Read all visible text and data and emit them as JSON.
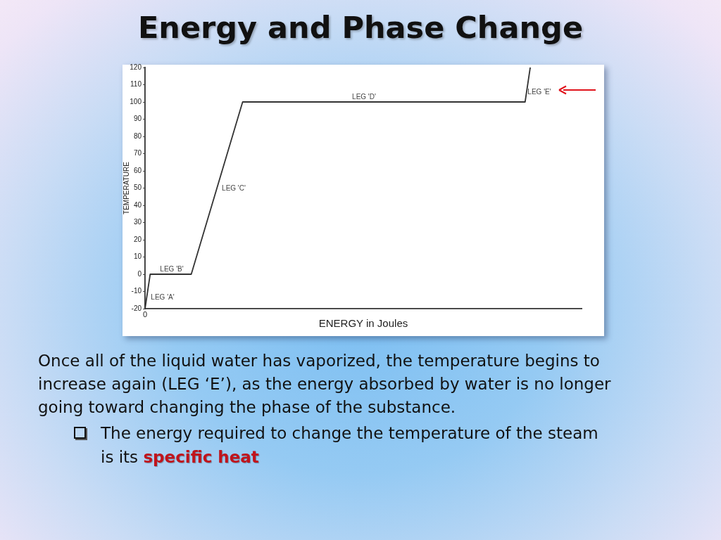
{
  "chart_data": {
    "type": "line",
    "title": "Energy and Phase Change",
    "xlabel": "ENERGY in Joules",
    "ylabel": "TEMPERATURE",
    "categories": [
      "0",
      null,
      null,
      null,
      null,
      null,
      null,
      null,
      null,
      null,
      null,
      null,
      null,
      null,
      null,
      null,
      null,
      null,
      null,
      null,
      null,
      null,
      null,
      null,
      null,
      null,
      null,
      null,
      null,
      null,
      null,
      null,
      null,
      null,
      null,
      null,
      null,
      null,
      null,
      null,
      null,
      null,
      null,
      null,
      null,
      null,
      null,
      null,
      null,
      null,
      null,
      null,
      null,
      null,
      null,
      null,
      null,
      null,
      null,
      null,
      null,
      null,
      null,
      null,
      null,
      null,
      null,
      null,
      null,
      null,
      null,
      null,
      null,
      null,
      null,
      null,
      null,
      null,
      null,
      null,
      null,
      null,
      null,
      null,
      null,
      null
    ],
    "series": [
      {
        "color": "#333333",
        "values": [
          -20,
          0,
          0,
          0,
          0,
          0,
          0,
          0,
          0,
          0,
          10,
          20,
          30,
          40,
          50,
          60,
          70,
          80,
          90,
          100,
          100,
          100,
          100,
          100,
          100,
          100,
          100,
          100,
          100,
          100,
          100,
          100,
          100,
          100,
          100,
          100,
          100,
          100,
          100,
          100,
          100,
          100,
          100,
          100,
          100,
          100,
          100,
          100,
          100,
          100,
          100,
          100,
          100,
          100,
          100,
          100,
          100,
          100,
          100,
          100,
          100,
          100,
          100,
          100,
          100,
          100,
          100,
          100,
          100,
          100,
          100,
          100,
          100,
          100,
          100,
          120,
          null,
          null,
          null,
          null,
          null,
          null,
          null,
          null,
          null,
          null
        ]
      }
    ],
    "ylim": [
      -20,
      120
    ],
    "yticks": [
      -20,
      -10,
      0,
      10,
      20,
      30,
      40,
      50,
      60,
      70,
      80,
      90,
      100,
      110,
      120
    ],
    "grid": false,
    "legend": false,
    "marker": "none",
    "line_style": "solid",
    "annotations": [
      "LEG 'A'",
      "LEG 'B'",
      "LEG 'C'",
      "LEG 'D'",
      "LEG 'E'",
      "Once all of the liquid water has vaporized, the temperature begins to increase again (LEG ‘E’), as the energy absorbed by water is no longer going toward changing the phase of the substance.",
      "The energy required to change the temperature of the steam is its",
      "specific heat"
    ]
  }
}
